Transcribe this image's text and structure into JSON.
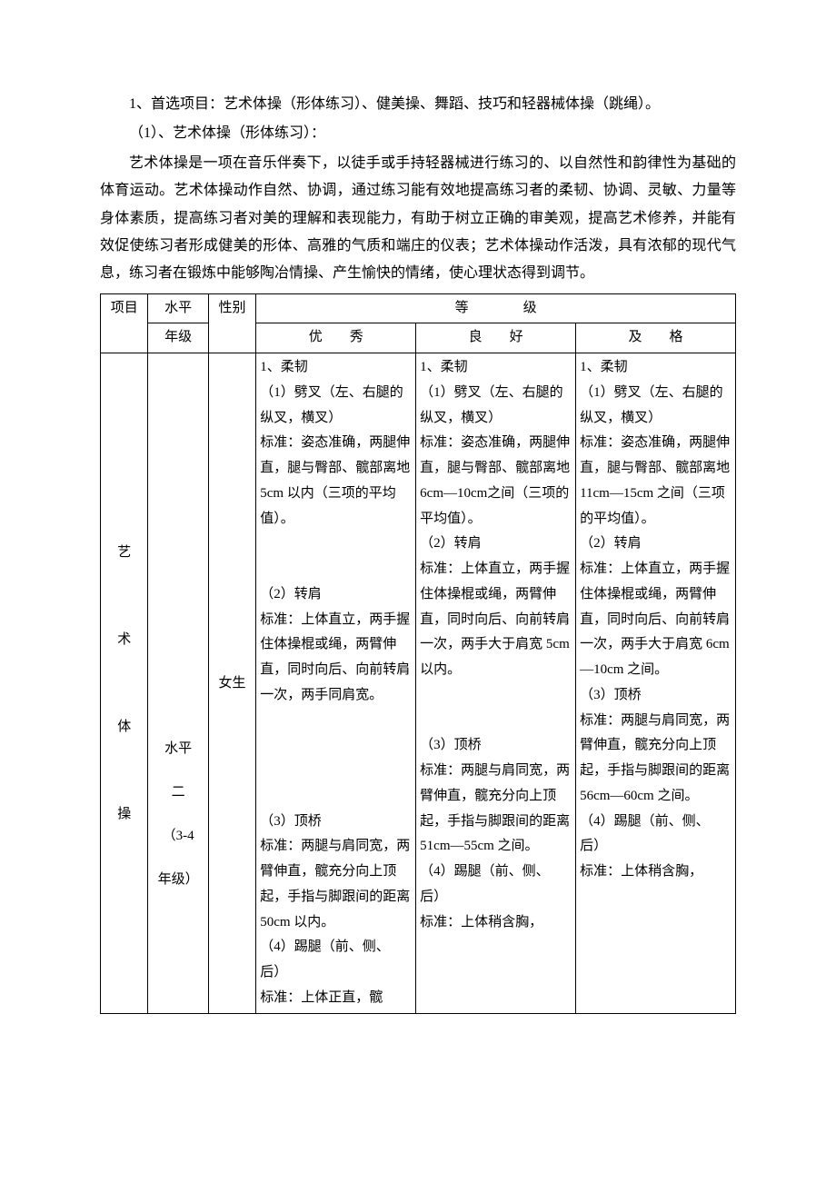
{
  "intro": {
    "line1": "1、首选项目：艺术体操（形体练习）、健美操、舞蹈、技巧和轻器械体操（跳绳）。",
    "line2": "（1）、艺术体操（形体练习）：",
    "body": "艺术体操是一项在音乐伴奏下，以徒手或手持轻器械进行练习的、以自然性和韵律性为基础的体育运动。艺术体操动作自然、协调，通过练习能有效地提高练习者的柔韧、协调、灵敏、力量等身体素质，提高练习者对美的理解和表现能力，有助于树立正确的审美观，提高艺术修养，并能有效促使练习者形成健美的形体、高雅的气质和端庄的仪表；艺术体操动作活泼，具有浓郁的现代气息，练习者在锻炼中能够陶冶情操、产生愉快的情绪，使心理状态得到调节。"
  },
  "table": {
    "headers": {
      "project": "项目",
      "level_grade_l1": "水平",
      "level_grade_l2": "年级",
      "gender": "性别",
      "rank_header": "等　　　　级",
      "excellent": "优　　秀",
      "good": "良　　好",
      "pass": "及　　格"
    },
    "row": {
      "project": "艺\n\n术\n\n体\n\n操",
      "level": "水平二（3-4年级）",
      "gender": "女生",
      "excellent": "1、柔韧\n（1）劈叉（左、右腿的纵叉，横叉）\n标准：姿态准确，两腿伸直，腿与臀部、髋部离地 5cm 以内（三项的平均值）。\n\n（2）转肩\n标准：上体直立，两手握住体操棍或绳，两臂伸直，同时向后、向前转肩一次，两手同肩宽。\n\n\n（3）顶桥\n标准：两腿与肩同宽，两臂伸直，髋充分向上顶起，手指与脚跟间的距离 50cm 以内。\n（4）踢腿（前、侧、后）\n标准：上体正直，髋",
      "good": "1、柔韧\n（1）劈叉（左、右腿的纵叉，横叉）\n标准：姿态准确，两腿伸直，腿与臀部、髋部离地 6cm—10cm之间（三项的平均值）。\n（2）转肩\n标准：上体直立，两手握住体操棍或绳，两臂伸直，同时向后、向前转肩一次，两手大于肩宽 5cm 以内。\n\n（3）顶桥\n标准：两腿与肩同宽，两臂伸直，髋充分向上顶起，手指与脚跟间的距离51cm—55cm 之间。\n（4）踢腿（前、侧、后）\n标准：上体稍含胸，",
      "pass": "1、柔韧\n（1）劈叉（左、右腿的纵叉，横叉）\n标准：姿态准确，两腿伸直，腿与臀部、髋部离地11cm—15cm 之间（三项的平均值）。\n（2）转肩\n标准：上体直立，两手握住体操棍或绳，两臂伸直，同时向后、向前转肩一次，两手大于肩宽 6cm—10cm 之间。\n（3）顶桥\n标准：两腿与肩同宽，两臂伸直，髋充分向上顶起，手指与脚跟间的距离56cm—60cm 之间。\n（4）踢腿（前、侧、后）\n标准：上体稍含胸，"
    }
  }
}
